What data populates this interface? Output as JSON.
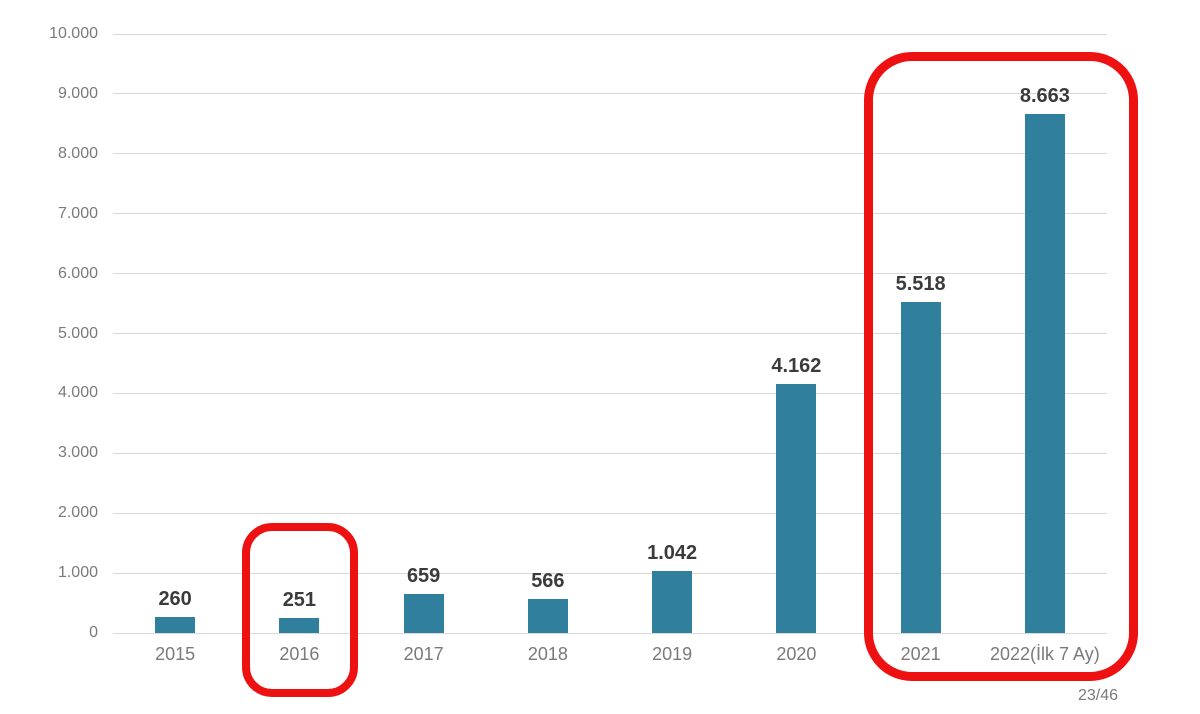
{
  "page": {
    "page_number": "23/46"
  },
  "chart_data": {
    "type": "bar",
    "title": "",
    "xlabel": "",
    "ylabel": "",
    "categories": [
      "2015",
      "2016",
      "2017",
      "2018",
      "2019",
      "2020",
      "2021",
      "2022(İlk 7 Ay)"
    ],
    "values": [
      260,
      251,
      659,
      566,
      1042,
      4162,
      5518,
      8663
    ],
    "value_labels": [
      "260",
      "251",
      "659",
      "566",
      "1.042",
      "4.162",
      "5.518",
      "8.663"
    ],
    "ylim": [
      0,
      10000
    ],
    "y_tick_step": 1000,
    "y_tick_labels": [
      "0",
      "1.000",
      "2.000",
      "3.000",
      "4.000",
      "5.000",
      "6.000",
      "7.000",
      "8.000",
      "9.000",
      "10.000"
    ],
    "grid": true,
    "legend": "none",
    "bar_color": "#2f7f9d",
    "value_label_color": "#3b3b3b",
    "axis_text_color": "#7a7a7a",
    "gridline_color": "#d9d9d9",
    "annotations": [
      {
        "type": "highlight-box",
        "categories": [
          "2016"
        ],
        "color": "#ee1111"
      },
      {
        "type": "highlight-box",
        "categories": [
          "2021",
          "2022(İlk 7 Ay)"
        ],
        "color": "#ee1111"
      }
    ]
  }
}
